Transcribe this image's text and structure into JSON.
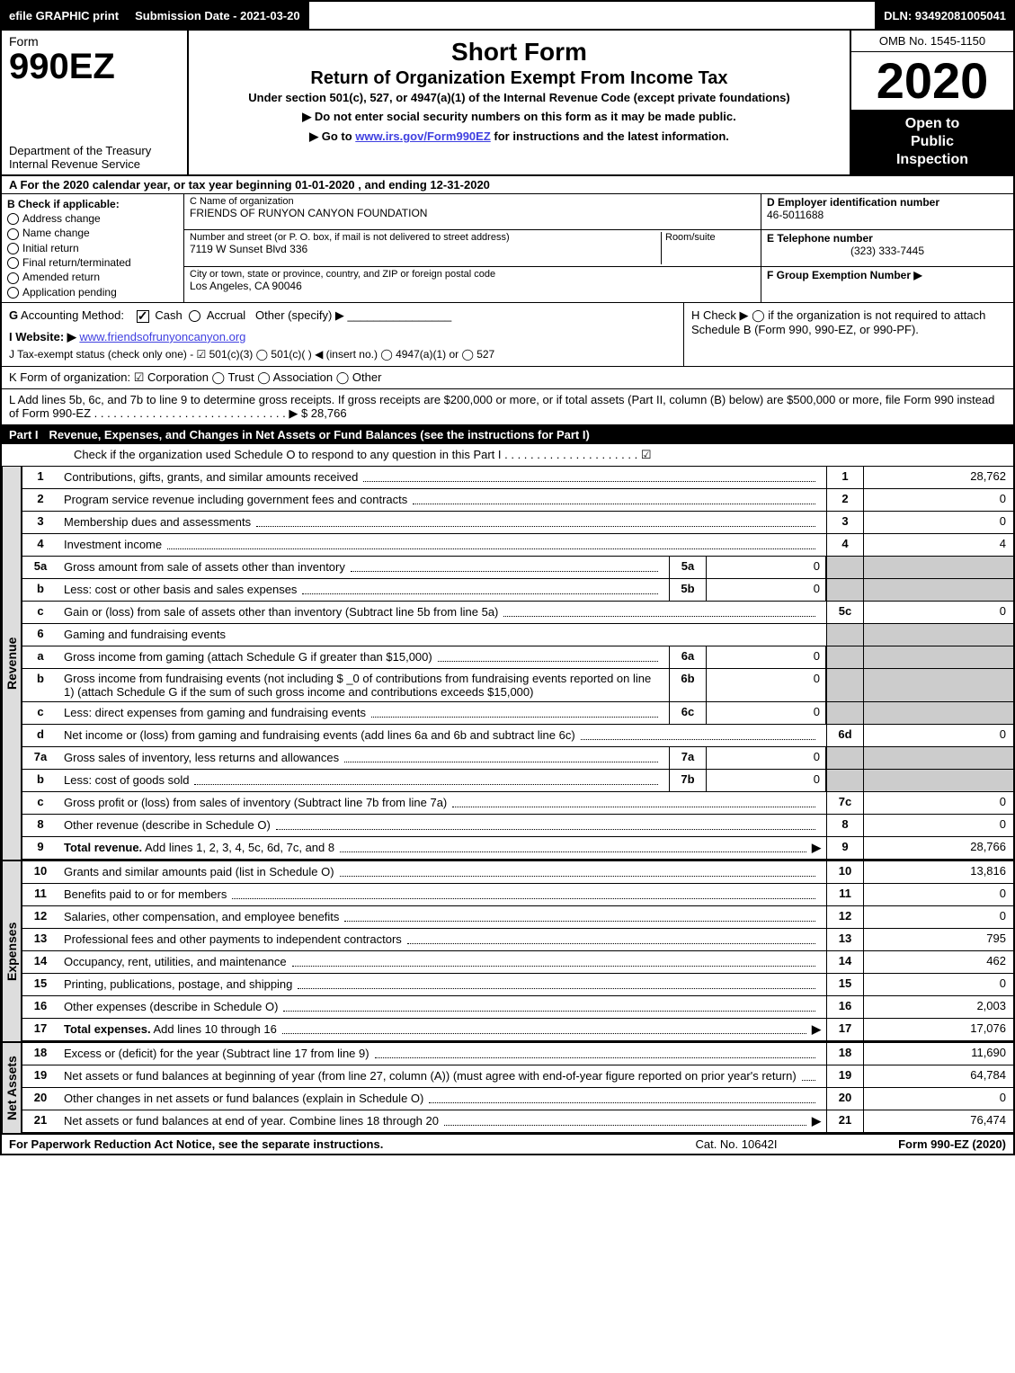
{
  "topbar": {
    "efile": "efile GRAPHIC print",
    "submission": "Submission Date - 2021-03-20",
    "dln": "DLN: 93492081005041"
  },
  "header": {
    "form_word": "Form",
    "form_number": "990EZ",
    "dept1": "Department of the Treasury",
    "dept2": "Internal Revenue Service",
    "title_short": "Short Form",
    "title_main": "Return of Organization Exempt From Income Tax",
    "subtitle": "Under section 501(c), 527, or 4947(a)(1) of the Internal Revenue Code (except private foundations)",
    "warn": "▶ Do not enter social security numbers on this form as it may be made public.",
    "goto": "▶ Go to ",
    "goto_link": "www.irs.gov/Form990EZ",
    "goto_tail": " for instructions and the latest information.",
    "omb": "OMB No. 1545-1150",
    "year": "2020",
    "open1": "Open to",
    "open2": "Public",
    "open3": "Inspection"
  },
  "lineA": "A For the 2020 calendar year, or tax year beginning 01-01-2020 , and ending 12-31-2020",
  "colB": {
    "head": "B  Check if applicable:",
    "addr": "Address change",
    "name": "Name change",
    "init": "Initial return",
    "final": "Final return/terminated",
    "amend": "Amended return",
    "app": "Application pending"
  },
  "colC": {
    "cname_lbl": "C Name of organization",
    "cname": "FRIENDS OF RUNYON CANYON FOUNDATION",
    "addr_lbl": "Number and street (or P. O. box, if mail is not delivered to street address)",
    "room_lbl": "Room/suite",
    "addr": "7119 W Sunset Blvd 336",
    "city_lbl": "City or town, state or province, country, and ZIP or foreign postal code",
    "city": "Los Angeles, CA  90046"
  },
  "colD": {
    "d_lbl": "D Employer identification number",
    "ein": "46-5011688",
    "e_lbl": "E Telephone number",
    "phone": "(323) 333-7445",
    "f_lbl": "F Group Exemption Number  ▶"
  },
  "gh": {
    "g": "G Accounting Method:   ☑ Cash  ◯ Accrual   Other (specify) ▶ ",
    "i": "I Website: ▶",
    "i_link": "www.friendsofrunyoncanyon.org",
    "j": "J Tax-exempt status (check only one) - ☑ 501(c)(3) ◯ 501(c)( ) ◀ (insert no.) ◯ 4947(a)(1) or ◯ 527",
    "h": "H  Check ▶  ◯  if the organization is not required to attach Schedule B (Form 990, 990-EZ, or 990-PF)."
  },
  "k": "K Form of organization:   ☑ Corporation  ◯ Trust  ◯ Association  ◯ Other",
  "l": "L Add lines 5b, 6c, and 7b to line 9 to determine gross receipts. If gross receipts are $200,000 or more, or if total assets (Part II, column (B) below) are $500,000 or more, file Form 990 instead of Form 990-EZ . . . . . . . . . . . . . . . . . . . . . . . . . . . . . . ▶ $ 28,766",
  "part1": {
    "label": "Part I",
    "title": "Revenue, Expenses, and Changes in Net Assets or Fund Balances (see the instructions for Part I)",
    "check": "Check if the organization used Schedule O to respond to any question in this Part I . . . . . . . . . . . . . . . . . . . . .  ☑"
  },
  "vtabs": {
    "rev": "Revenue",
    "exp": "Expenses",
    "net": "Net Assets"
  },
  "lines": {
    "l1": {
      "n": "1",
      "d": "Contributions, gifts, grants, and similar amounts received",
      "rn": "1",
      "rv": "28,762"
    },
    "l2": {
      "n": "2",
      "d": "Program service revenue including government fees and contracts",
      "rn": "2",
      "rv": "0"
    },
    "l3": {
      "n": "3",
      "d": "Membership dues and assessments",
      "rn": "3",
      "rv": "0"
    },
    "l4": {
      "n": "4",
      "d": "Investment income",
      "rn": "4",
      "rv": "4"
    },
    "l5a": {
      "n": "5a",
      "d": "Gross amount from sale of assets other than inventory",
      "mb": "5a",
      "mv": "0"
    },
    "l5b": {
      "n": "b",
      "d": "Less: cost or other basis and sales expenses",
      "mb": "5b",
      "mv": "0"
    },
    "l5c": {
      "n": "c",
      "d": "Gain or (loss) from sale of assets other than inventory (Subtract line 5b from line 5a)",
      "rn": "5c",
      "rv": "0"
    },
    "l6": {
      "n": "6",
      "d": "Gaming and fundraising events"
    },
    "l6a": {
      "n": "a",
      "d": "Gross income from gaming (attach Schedule G if greater than $15,000)",
      "mb": "6a",
      "mv": "0"
    },
    "l6b": {
      "n": "b",
      "d": "Gross income from fundraising events (not including $ _0        of contributions from fundraising events reported on line 1) (attach Schedule G if the sum of such gross income and contributions exceeds $15,000)",
      "mb": "6b",
      "mv": "0"
    },
    "l6c": {
      "n": "c",
      "d": "Less: direct expenses from gaming and fundraising events",
      "mb": "6c",
      "mv": "0"
    },
    "l6d": {
      "n": "d",
      "d": "Net income or (loss) from gaming and fundraising events (add lines 6a and 6b and subtract line 6c)",
      "rn": "6d",
      "rv": "0"
    },
    "l7a": {
      "n": "7a",
      "d": "Gross sales of inventory, less returns and allowances",
      "mb": "7a",
      "mv": "0"
    },
    "l7b": {
      "n": "b",
      "d": "Less: cost of goods sold",
      "mb": "7b",
      "mv": "0"
    },
    "l7c": {
      "n": "c",
      "d": "Gross profit or (loss) from sales of inventory (Subtract line 7b from line 7a)",
      "rn": "7c",
      "rv": "0"
    },
    "l8": {
      "n": "8",
      "d": "Other revenue (describe in Schedule O)",
      "rn": "8",
      "rv": "0"
    },
    "l9": {
      "n": "9",
      "d": "Total revenue. Add lines 1, 2, 3, 4, 5c, 6d, 7c, and 8",
      "rn": "9",
      "rv": "28,766",
      "arrow": "▶"
    },
    "l10": {
      "n": "10",
      "d": "Grants and similar amounts paid (list in Schedule O)",
      "rn": "10",
      "rv": "13,816"
    },
    "l11": {
      "n": "11",
      "d": "Benefits paid to or for members",
      "rn": "11",
      "rv": "0"
    },
    "l12": {
      "n": "12",
      "d": "Salaries, other compensation, and employee benefits",
      "rn": "12",
      "rv": "0"
    },
    "l13": {
      "n": "13",
      "d": "Professional fees and other payments to independent contractors",
      "rn": "13",
      "rv": "795"
    },
    "l14": {
      "n": "14",
      "d": "Occupancy, rent, utilities, and maintenance",
      "rn": "14",
      "rv": "462"
    },
    "l15": {
      "n": "15",
      "d": "Printing, publications, postage, and shipping",
      "rn": "15",
      "rv": "0"
    },
    "l16": {
      "n": "16",
      "d": "Other expenses (describe in Schedule O)",
      "rn": "16",
      "rv": "2,003"
    },
    "l17": {
      "n": "17",
      "d": "Total expenses. Add lines 10 through 16",
      "rn": "17",
      "rv": "17,076",
      "arrow": "▶"
    },
    "l18": {
      "n": "18",
      "d": "Excess or (deficit) for the year (Subtract line 17 from line 9)",
      "rn": "18",
      "rv": "11,690"
    },
    "l19": {
      "n": "19",
      "d": "Net assets or fund balances at beginning of year (from line 27, column (A)) (must agree with end-of-year figure reported on prior year's return)",
      "rn": "19",
      "rv": "64,784"
    },
    "l20": {
      "n": "20",
      "d": "Other changes in net assets or fund balances (explain in Schedule O)",
      "rn": "20",
      "rv": "0"
    },
    "l21": {
      "n": "21",
      "d": "Net assets or fund balances at end of year. Combine lines 18 through 20",
      "rn": "21",
      "rv": "76,474",
      "arrow": "▶"
    }
  },
  "footer": {
    "left": "For Paperwork Reduction Act Notice, see the separate instructions.",
    "mid": "Cat. No. 10642I",
    "right": "Form 990-EZ (2020)"
  }
}
